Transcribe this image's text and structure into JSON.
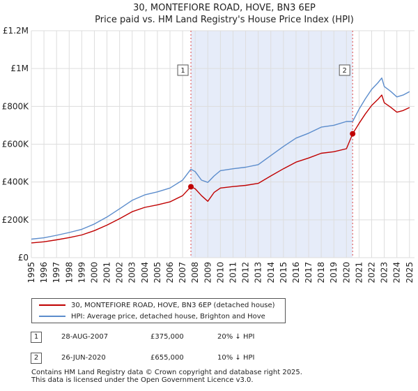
{
  "title_line1": "30, MONTEFIORE ROAD, HOVE, BN3 6EP",
  "title_line2": "Price paid vs. HM Land Registry's House Price Index (HPI)",
  "chart_data": {
    "type": "line",
    "title": "30, MONTEFIORE ROAD, HOVE, BN3 6EP — Price paid vs. HM Land Registry's House Price Index (HPI)",
    "xlabel": "",
    "ylabel": "",
    "xlim": [
      1995,
      2025.4
    ],
    "ylim": [
      0,
      1200000
    ],
    "y_ticks": [
      {
        "value": 0,
        "label": "£0"
      },
      {
        "value": 200000,
        "label": "£200K"
      },
      {
        "value": 400000,
        "label": "£400K"
      },
      {
        "value": 600000,
        "label": "£600K"
      },
      {
        "value": 800000,
        "label": "£800K"
      },
      {
        "value": 1000000,
        "label": "£1M"
      },
      {
        "value": 1200000,
        "label": "£1.2M"
      }
    ],
    "x_ticks": [
      "1995",
      "1996",
      "1997",
      "1998",
      "1999",
      "2000",
      "2001",
      "2002",
      "2003",
      "2004",
      "2005",
      "2006",
      "2007",
      "2008",
      "2009",
      "2010",
      "2011",
      "2012",
      "2013",
      "2014",
      "2015",
      "2016",
      "2017",
      "2018",
      "2019",
      "2020",
      "2021",
      "2022",
      "2023",
      "2024",
      "2025"
    ],
    "grid": true,
    "shaded_region": [
      2007.66,
      2020.49
    ],
    "series": [
      {
        "name": "HPI: Average price, detached house, Brighton and Hove",
        "color": "#5b8ccc",
        "x": [
          1995,
          1996,
          1997,
          1998,
          1999,
          2000,
          2001,
          2002,
          2003,
          2004,
          2005,
          2006,
          2007,
          2007.66,
          2008,
          2008.5,
          2009,
          2009.5,
          2010,
          2011,
          2012,
          2013,
          2014,
          2015,
          2016,
          2017,
          2018,
          2019,
          2020,
          2020.49,
          2021,
          2021.5,
          2022,
          2022.5,
          2022.8,
          2023,
          2023.5,
          2024,
          2024.5,
          2025
        ],
        "values": [
          98000,
          105000,
          118000,
          133000,
          150000,
          178000,
          215000,
          258000,
          303000,
          332000,
          348000,
          368000,
          410000,
          468000,
          455000,
          410000,
          398000,
          432000,
          460000,
          470000,
          478000,
          492000,
          540000,
          588000,
          632000,
          658000,
          690000,
          700000,
          720000,
          720000,
          785000,
          840000,
          890000,
          925000,
          950000,
          905000,
          880000,
          850000,
          860000,
          878000
        ]
      },
      {
        "name": "30, MONTEFIORE ROAD, HOVE, BN3 6EP (detached house)",
        "color": "#c00000",
        "x": [
          1995,
          1996,
          1997,
          1998,
          1999,
          2000,
          2001,
          2002,
          2003,
          2004,
          2005,
          2006,
          2007,
          2007.66,
          2008,
          2008.5,
          2009,
          2009.5,
          2010,
          2011,
          2012,
          2013,
          2014,
          2015,
          2016,
          2017,
          2018,
          2019,
          2020,
          2020.49,
          2021,
          2021.5,
          2022,
          2022.5,
          2022.8,
          2023,
          2023.5,
          2024,
          2024.5,
          2025
        ],
        "values": [
          78000,
          84000,
          94000,
          106000,
          120000,
          143000,
          172000,
          206000,
          243000,
          266000,
          279000,
          295000,
          328000,
          375000,
          364000,
          328000,
          298000,
          345000,
          368000,
          376000,
          382000,
          393000,
          432000,
          470000,
          505000,
          527000,
          552000,
          560000,
          576000,
          655000,
          710000,
          760000,
          805000,
          837000,
          860000,
          819000,
          796000,
          769000,
          778000,
          794000
        ]
      }
    ],
    "annotations": [
      {
        "id": "1",
        "x": 2007.66,
        "value": 375000
      },
      {
        "id": "2",
        "x": 2020.49,
        "value": 655000
      }
    ],
    "legend": [
      {
        "label": "30, MONTEFIORE ROAD, HOVE, BN3 6EP (detached house)",
        "color": "#c00000"
      },
      {
        "label": "HPI: Average price, detached house, Brighton and Hove",
        "color": "#5b8ccc"
      }
    ]
  },
  "transactions": [
    {
      "id": "1",
      "date": "28-AUG-2007",
      "price": "£375,000",
      "hpi": "20% ↓ HPI"
    },
    {
      "id": "2",
      "date": "26-JUN-2020",
      "price": "£655,000",
      "hpi": "10% ↓ HPI"
    }
  ],
  "footer_line1": "Contains HM Land Registry data © Crown copyright and database right 2025.",
  "footer_line2": "This data is licensed under the Open Government Licence v3.0."
}
